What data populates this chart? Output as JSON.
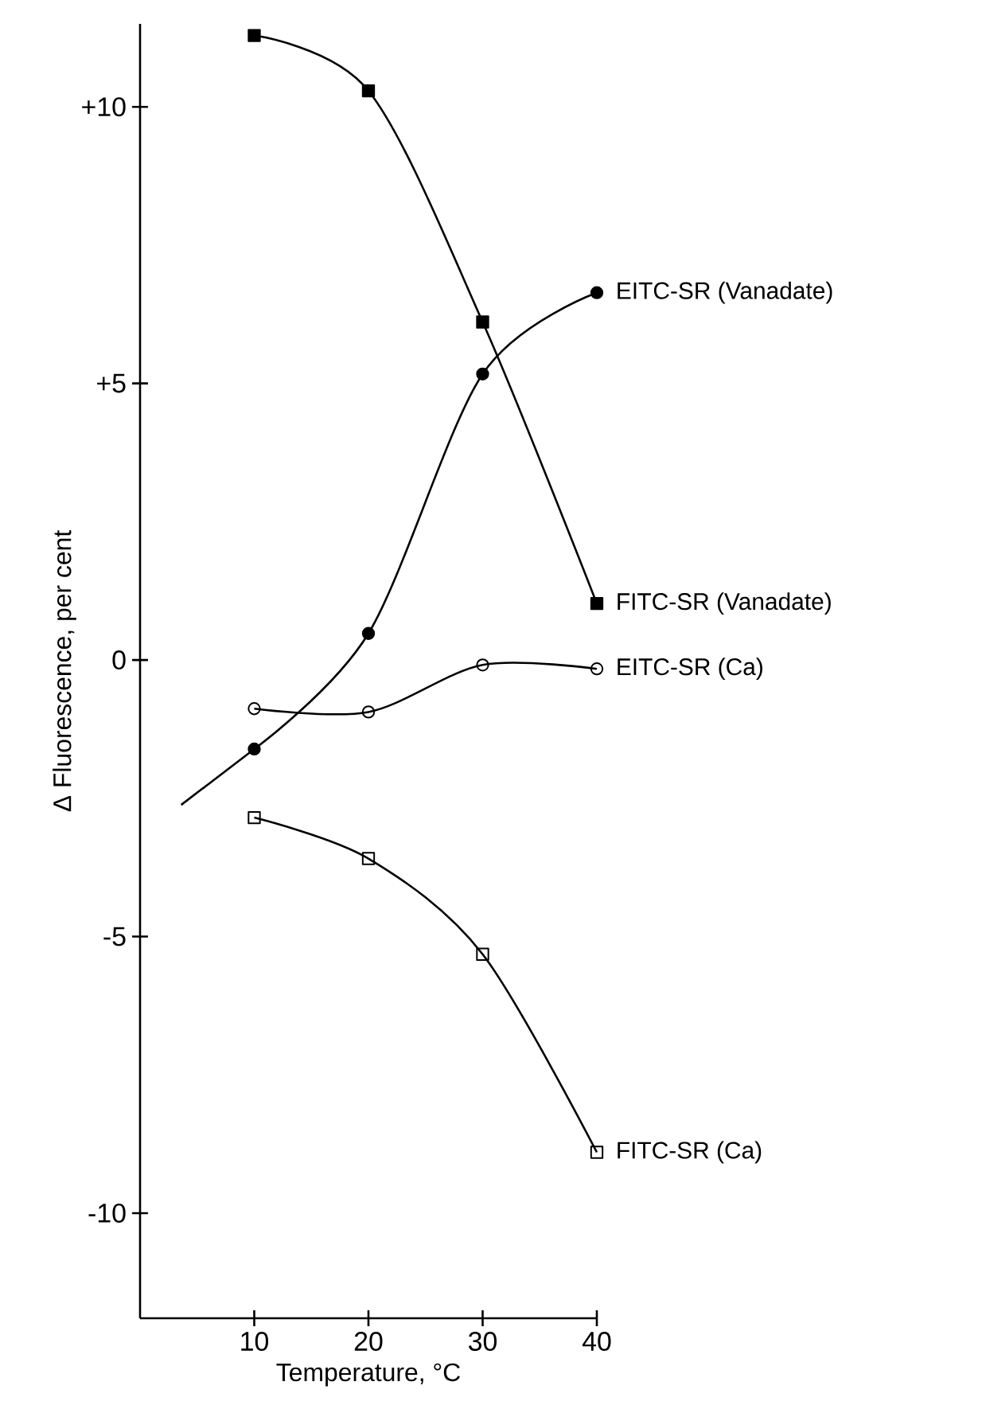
{
  "chart_data": {
    "type": "line",
    "xlabel": "Temperature, °C",
    "ylabel": "Δ Fluorescence, per cent",
    "xlim": [
      0,
      40
    ],
    "ylim": [
      -11.9,
      11.5
    ],
    "xticks": [
      10,
      20,
      30,
      40
    ],
    "yticks": [
      {
        "value": 10,
        "label": "+10"
      },
      {
        "value": 5,
        "label": "+5"
      },
      0,
      -5,
      -10
    ],
    "grid": false,
    "legend": false,
    "line_style": "solid",
    "series": [
      {
        "name": "EITC-SR (Vanadate)",
        "color": "#000000",
        "marker": "circle",
        "x": [
          10,
          20,
          30,
          40
        ],
        "values": [
          -1.61,
          0.48,
          5.17,
          6.64
        ]
      },
      {
        "name": "FITC-SR (Vanadate)",
        "color": "#000000",
        "marker": "square",
        "x": [
          10,
          20,
          30,
          40
        ],
        "values": [
          11.29,
          10.29,
          6.11,
          1.02
        ]
      },
      {
        "name": "EITC-SR (Ca)",
        "color": "#000000",
        "marker": "circle_open",
        "x": [
          10,
          20,
          30,
          40
        ],
        "values": [
          -0.88,
          -0.94,
          -0.09,
          -0.16
        ]
      },
      {
        "name": "FITC-SR (Ca)",
        "color": "#000000",
        "marker": "square_open",
        "x": [
          10,
          20,
          30,
          40
        ],
        "values": [
          -2.85,
          -3.59,
          -5.32,
          -8.9
        ]
      },
      {
        "color": "#000000",
        "marker": "none",
        "x": [
          3.6,
          10
        ],
        "values": [
          -2.62,
          -1.61
        ]
      }
    ]
  }
}
